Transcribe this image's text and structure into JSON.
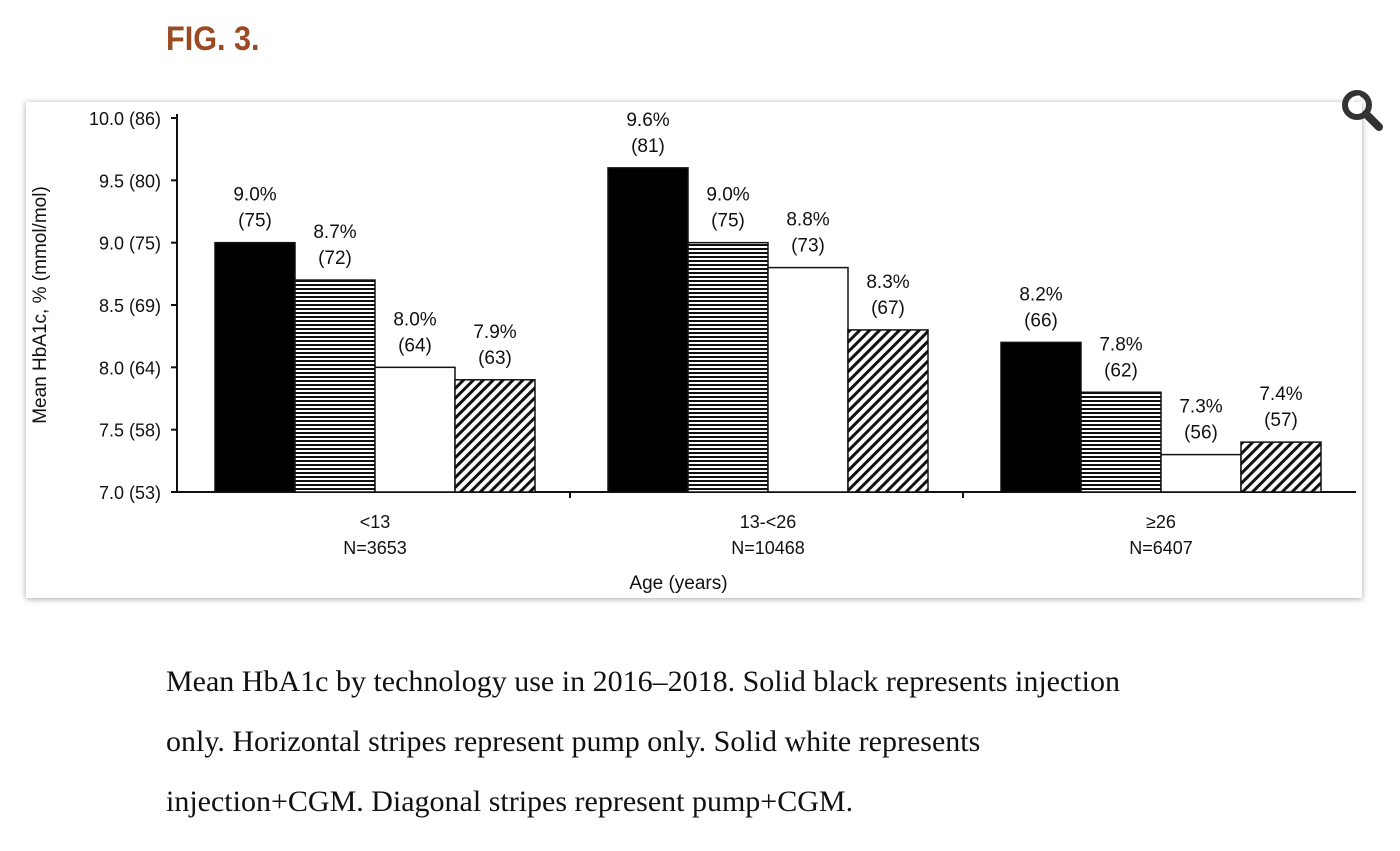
{
  "figure": {
    "label": "FIG. 3."
  },
  "zoom_icon": "magnifier-icon",
  "caption": "Mean HbA1c by technology use in 2016–2018. Solid black represents injection only. Horizontal stripes represent pump only. Solid white represents injection+CGM. Diagonal stripes represent pump+CGM.",
  "chart_data": {
    "type": "bar",
    "title": "",
    "xlabel": "Age (years)",
    "ylabel": "Mean HbA1c, % (mmol/mol)",
    "ylim": [
      7.0,
      10.0
    ],
    "yticks": [
      {
        "value": 7.0,
        "label": "7.0 (53)"
      },
      {
        "value": 7.5,
        "label": "7.5 (58)"
      },
      {
        "value": 8.0,
        "label": "8.0 (64)"
      },
      {
        "value": 8.5,
        "label": "8.5 (69)"
      },
      {
        "value": 9.0,
        "label": "9.0 (75)"
      },
      {
        "value": 9.5,
        "label": "9.5 (80)"
      },
      {
        "value": 10.0,
        "label": "10.0 (86)"
      }
    ],
    "categories": [
      {
        "label": "<13",
        "n": "N=3653"
      },
      {
        "label": "13-<26",
        "n": "N=10468"
      },
      {
        "label": "≥26",
        "n": "N=6407"
      }
    ],
    "series": [
      {
        "fill": "solid-black",
        "values": [
          9.0,
          9.6,
          8.2
        ],
        "labels": [
          [
            "9.0%",
            "(75)"
          ],
          [
            "9.6%",
            "(81)"
          ],
          [
            "8.2%",
            "(66)"
          ]
        ]
      },
      {
        "fill": "horizontal-stripes",
        "values": [
          8.7,
          9.0,
          7.8
        ],
        "labels": [
          [
            "8.7%",
            "(72)"
          ],
          [
            "9.0%",
            "(75)"
          ],
          [
            "7.8%",
            "(62)"
          ]
        ]
      },
      {
        "fill": "solid-white",
        "values": [
          8.0,
          8.8,
          7.3
        ],
        "labels": [
          [
            "8.0%",
            "(64)"
          ],
          [
            "8.8%",
            "(73)"
          ],
          [
            "7.3%",
            "(56)"
          ]
        ]
      },
      {
        "fill": "diagonal-stripes",
        "values": [
          7.9,
          8.3,
          7.4
        ],
        "labels": [
          [
            "7.9%",
            "(63)"
          ],
          [
            "8.3%",
            "(67)"
          ],
          [
            "7.4%",
            "(57)"
          ]
        ]
      }
    ],
    "grid": false,
    "legend": "none"
  }
}
